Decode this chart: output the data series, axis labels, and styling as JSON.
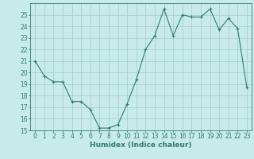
{
  "x": [
    0,
    1,
    2,
    3,
    4,
    5,
    6,
    7,
    8,
    9,
    10,
    11,
    12,
    13,
    14,
    15,
    16,
    17,
    18,
    19,
    20,
    21,
    22,
    23
  ],
  "y": [
    21,
    19.7,
    19.2,
    19.2,
    17.5,
    17.5,
    16.8,
    15.2,
    15.2,
    15.5,
    17.3,
    19.4,
    22.0,
    23.2,
    25.5,
    23.2,
    25.0,
    24.8,
    24.8,
    25.5,
    23.7,
    24.7,
    23.8,
    18.7
  ],
  "line_color": "#2e7d6e",
  "marker": "+",
  "bg_color": "#c8eaea",
  "grid_color": "#a8d0ce",
  "xlabel": "Humidex (Indice chaleur)",
  "ylim": [
    15,
    26
  ],
  "yticks": [
    15,
    16,
    17,
    18,
    19,
    20,
    21,
    22,
    23,
    24,
    25
  ],
  "xticks": [
    0,
    1,
    2,
    3,
    4,
    5,
    6,
    7,
    8,
    9,
    10,
    11,
    12,
    13,
    14,
    15,
    16,
    17,
    18,
    19,
    20,
    21,
    22,
    23
  ],
  "tick_color": "#2e7d6e",
  "axis_color": "#2e7d6e",
  "label_fontsize": 6.5,
  "tick_fontsize": 5.5
}
